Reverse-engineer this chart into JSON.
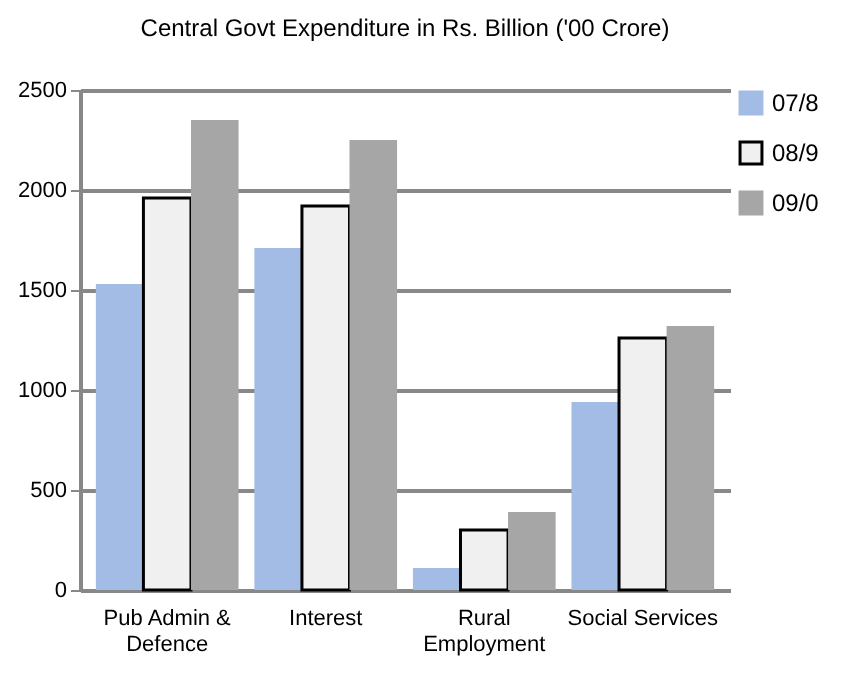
{
  "chart_data": {
    "type": "bar",
    "title": "Central Govt Expenditure in Rs. Billion ('00 Crore)",
    "categories": [
      "Pub Admin & Defence",
      "Interest",
      "Rural Employment",
      "Social Services"
    ],
    "series": [
      {
        "name": "07/8",
        "color": "#a3bce6",
        "values": [
          1530,
          1710,
          110,
          940
        ]
      },
      {
        "name": "08/9",
        "color": "#f0f0f0",
        "values": [
          1960,
          1920,
          300,
          1260
        ]
      },
      {
        "name": "09/0",
        "color": "#a6a6a6",
        "values": [
          2350,
          2250,
          390,
          1320
        ]
      }
    ],
    "ylim": [
      0,
      2500
    ],
    "yticks": [
      0,
      500,
      1000,
      1500,
      2000,
      2500
    ],
    "grid": "y",
    "legend": "right"
  }
}
